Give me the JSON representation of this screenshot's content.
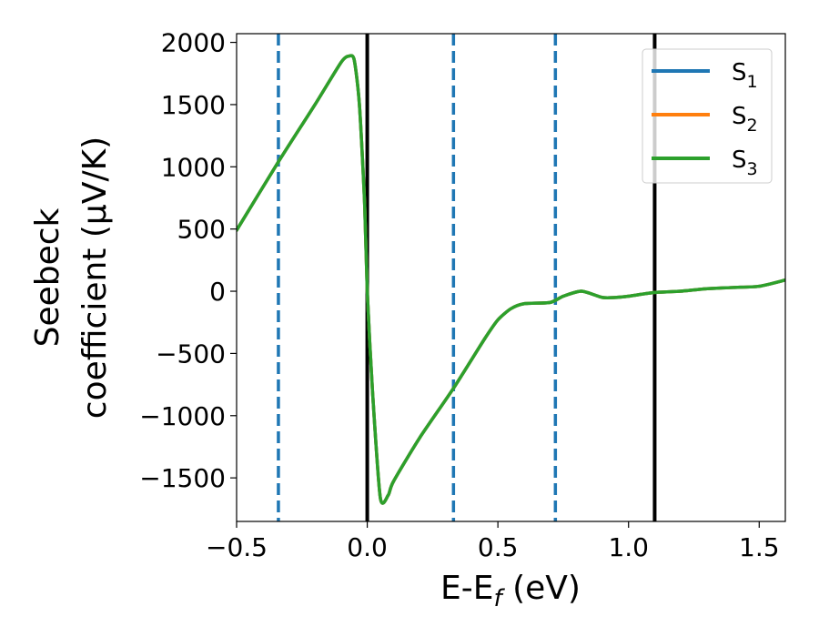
{
  "chart_data": {
    "type": "line",
    "title": "",
    "xlabel": {
      "main": "E-E",
      "sub": "f",
      "suffix": " (eV)"
    },
    "ylabel": {
      "line1": "Seebeck",
      "line2": "coefficient  (μV/K)"
    },
    "xlim": [
      -0.5,
      1.6
    ],
    "ylim": [
      -1850,
      2070
    ],
    "xticks": [
      -0.5,
      0.0,
      0.5,
      1.0,
      1.5
    ],
    "xtick_labels": [
      "−0.5",
      "0.0",
      "0.5",
      "1.0",
      "1.5"
    ],
    "yticks": [
      -1500,
      -1000,
      -500,
      0,
      500,
      1000,
      1500,
      2000
    ],
    "ytick_labels": [
      "−1500",
      "−1000",
      "−500",
      "0",
      "500",
      "1000",
      "1500",
      "2000"
    ],
    "grid": false,
    "legend_position": "top-right",
    "vlines": [
      {
        "x": -0.34,
        "style": "dashed",
        "color": "#1f77b4"
      },
      {
        "x": 0.0,
        "style": "solid",
        "color": "#000000"
      },
      {
        "x": 0.33,
        "style": "dashed",
        "color": "#1f77b4"
      },
      {
        "x": 0.72,
        "style": "dashed",
        "color": "#1f77b4"
      },
      {
        "x": 1.1,
        "style": "solid",
        "color": "#000000"
      }
    ],
    "series": [
      {
        "name": "S",
        "sub": "1",
        "color": "#1f77b4",
        "x": [
          -0.5,
          -0.34,
          -0.2,
          -0.1,
          -0.07,
          -0.05,
          -0.03,
          -0.01,
          0.0,
          0.02,
          0.05,
          0.08,
          0.1,
          0.2,
          0.33,
          0.45,
          0.5,
          0.55,
          0.6,
          0.7,
          0.75,
          0.82,
          0.9,
          0.95,
          1.0,
          1.1,
          1.2,
          1.3,
          1.4,
          1.5,
          1.6
        ],
        "y": [
          490,
          1040,
          1500,
          1840,
          1890,
          1860,
          1500,
          700,
          0,
          -800,
          -1660,
          -1640,
          -1530,
          -1180,
          -780,
          -380,
          -230,
          -140,
          -100,
          -90,
          -40,
          0,
          -50,
          -50,
          -40,
          -10,
          0,
          20,
          30,
          40,
          90
        ]
      },
      {
        "name": "S",
        "sub": "2",
        "color": "#ff7f0e",
        "x": [
          -0.5,
          -0.34,
          -0.2,
          -0.1,
          -0.07,
          -0.05,
          -0.03,
          -0.01,
          0.0,
          0.02,
          0.05,
          0.08,
          0.1,
          0.2,
          0.33,
          0.45,
          0.5,
          0.55,
          0.6,
          0.7,
          0.75,
          0.82,
          0.9,
          0.95,
          1.0,
          1.1,
          1.2,
          1.3,
          1.4,
          1.5,
          1.6
        ],
        "y": [
          490,
          1040,
          1500,
          1840,
          1890,
          1860,
          1500,
          700,
          0,
          -800,
          -1660,
          -1640,
          -1530,
          -1180,
          -780,
          -380,
          -230,
          -140,
          -100,
          -90,
          -40,
          0,
          -50,
          -50,
          -40,
          -10,
          0,
          20,
          30,
          40,
          90
        ]
      },
      {
        "name": "S",
        "sub": "3",
        "color": "#2ca02c",
        "x": [
          -0.5,
          -0.34,
          -0.2,
          -0.1,
          -0.07,
          -0.05,
          -0.03,
          -0.01,
          0.0,
          0.02,
          0.05,
          0.08,
          0.1,
          0.2,
          0.33,
          0.45,
          0.5,
          0.55,
          0.6,
          0.7,
          0.75,
          0.82,
          0.9,
          0.95,
          1.0,
          1.1,
          1.2,
          1.3,
          1.4,
          1.5,
          1.6
        ],
        "y": [
          490,
          1040,
          1500,
          1840,
          1890,
          1860,
          1500,
          700,
          0,
          -800,
          -1660,
          -1640,
          -1530,
          -1180,
          -780,
          -380,
          -230,
          -140,
          -100,
          -90,
          -40,
          0,
          -50,
          -50,
          -40,
          -10,
          0,
          20,
          30,
          40,
          90
        ]
      }
    ]
  }
}
